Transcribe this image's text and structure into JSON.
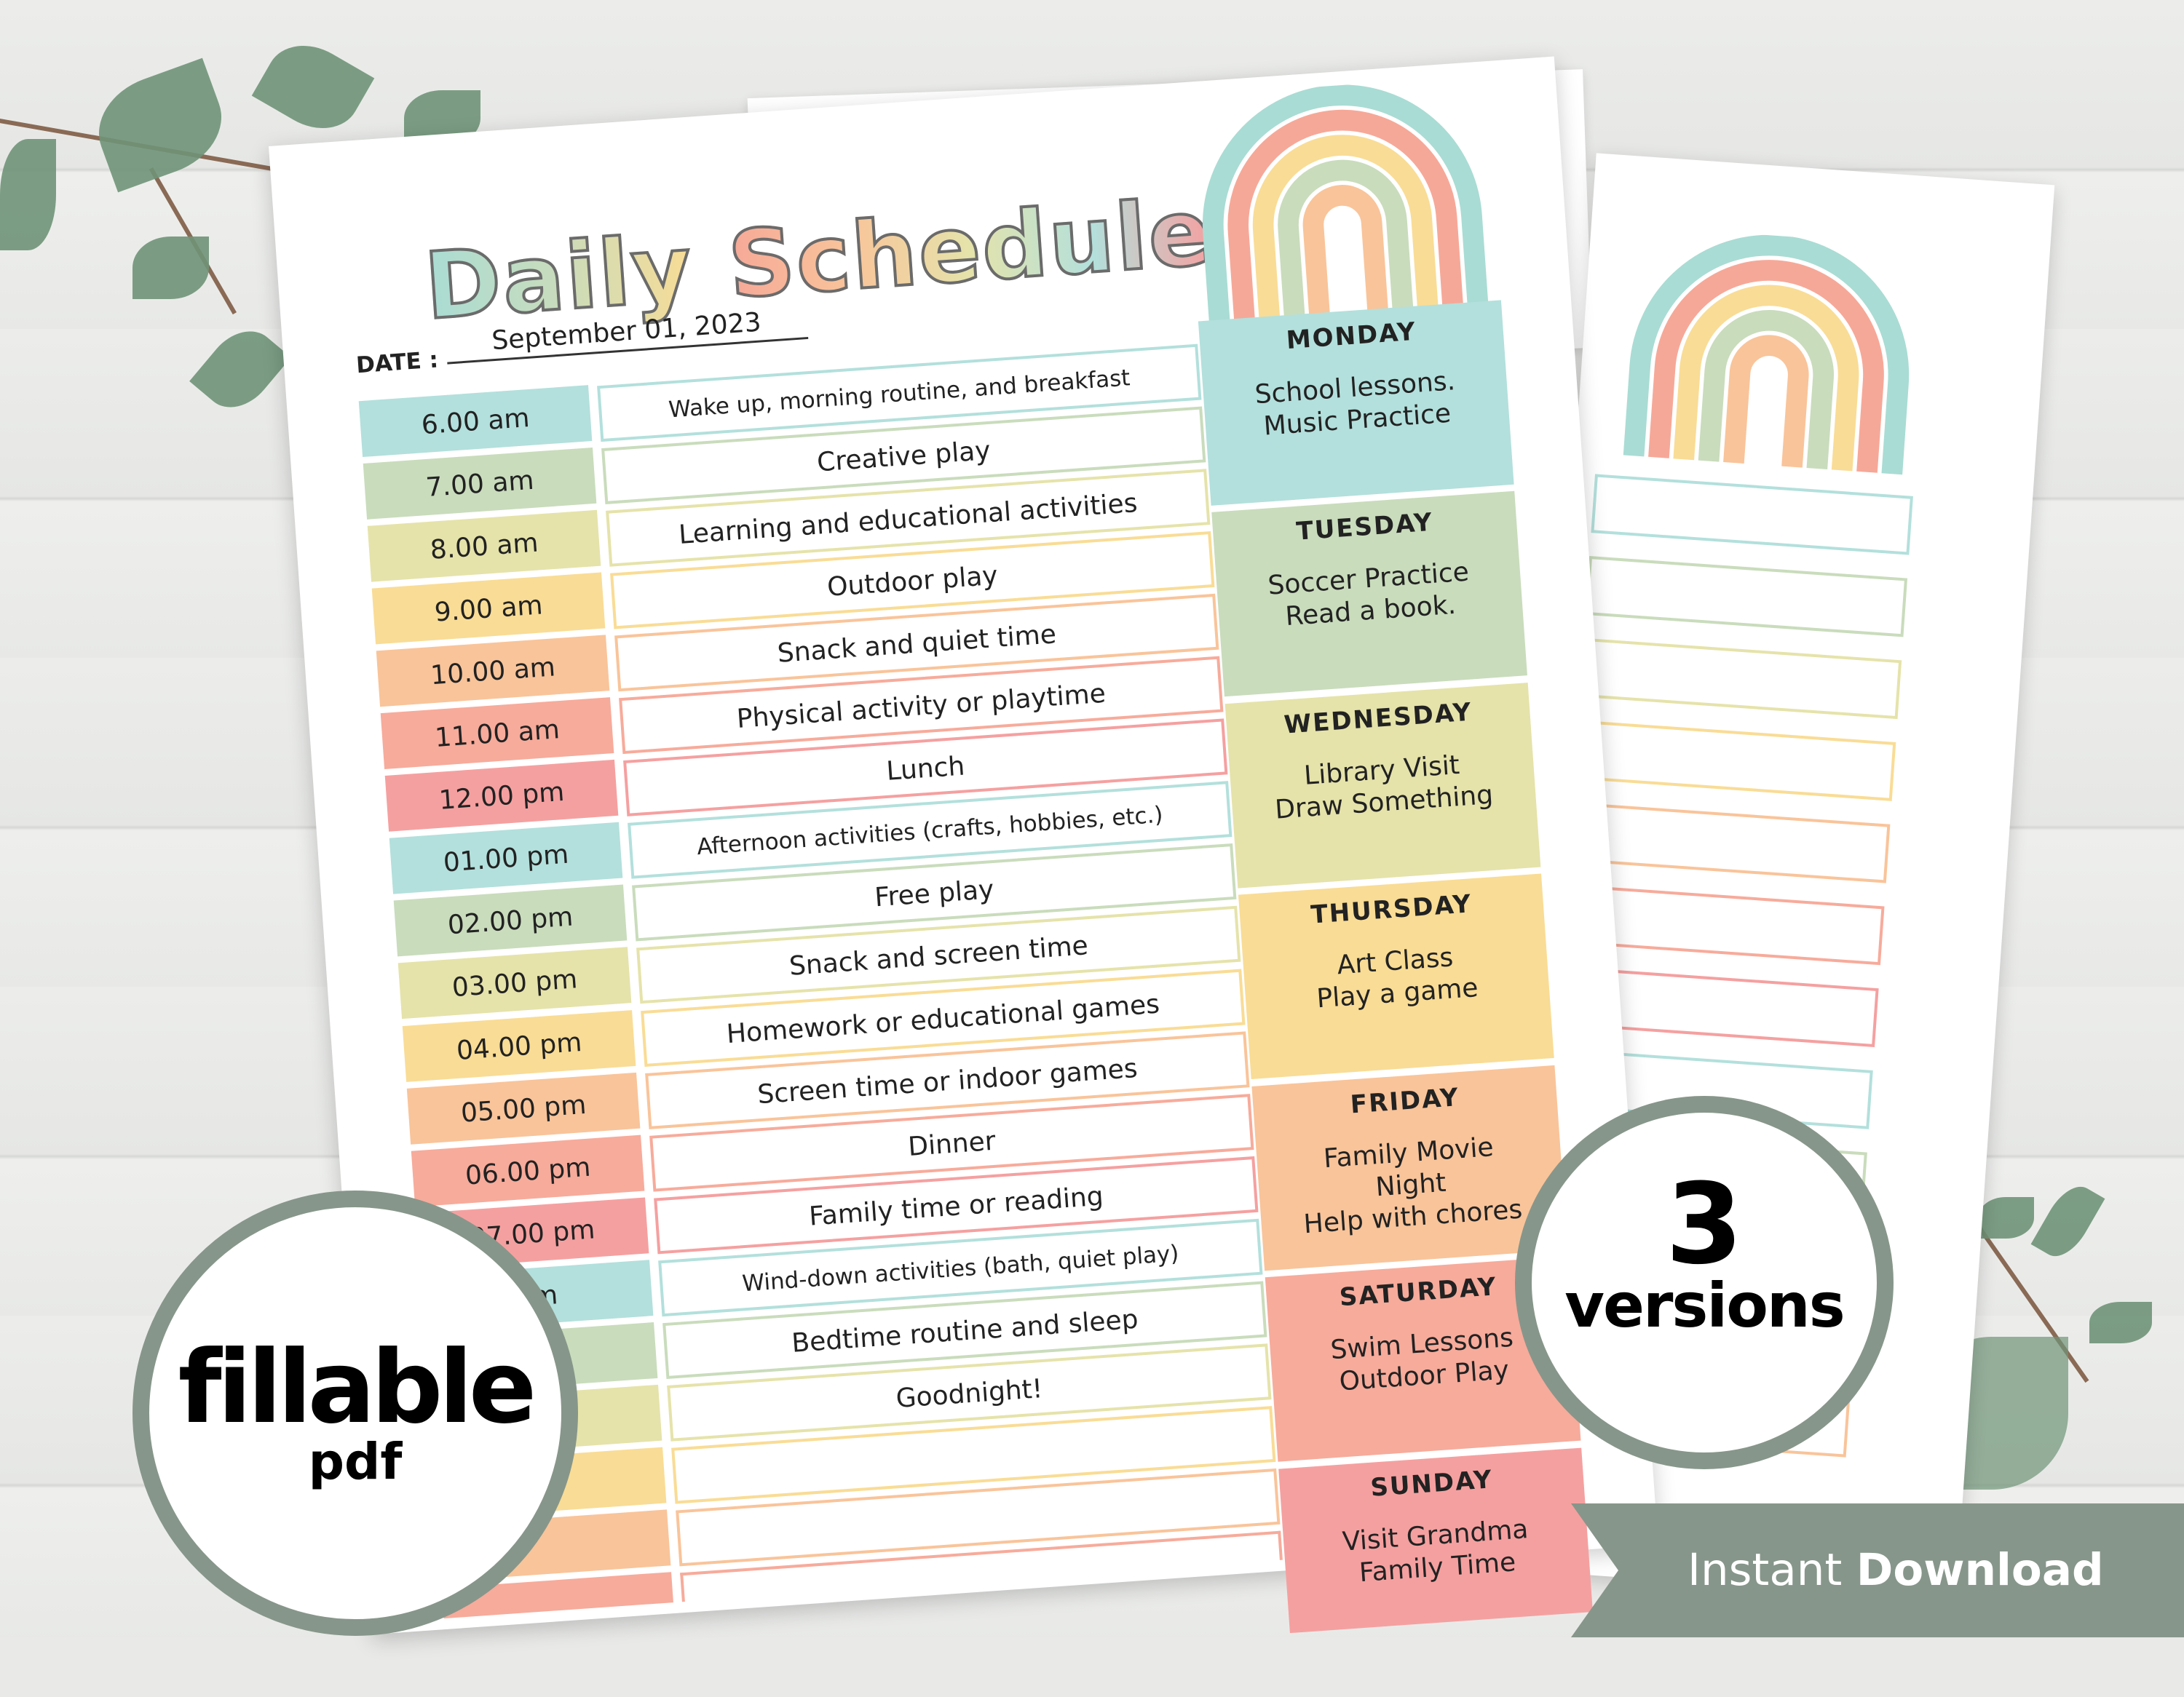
{
  "document": {
    "title_word1": "Daily",
    "title_word2": "Schedule",
    "date_label": "DATE :",
    "date_value": "September 01, 2023",
    "rows": [
      {
        "time": "6.00 am",
        "activity": "Wake up, morning routine, and breakfast"
      },
      {
        "time": "7.00 am",
        "activity": "Creative play"
      },
      {
        "time": "8.00 am",
        "activity": "Learning and educational activities"
      },
      {
        "time": "9.00 am",
        "activity": "Outdoor play"
      },
      {
        "time": "10.00 am",
        "activity": "Snack and quiet time"
      },
      {
        "time": "11.00 am",
        "activity": "Physical activity or playtime"
      },
      {
        "time": "12.00 pm",
        "activity": "Lunch"
      },
      {
        "time": "01.00 pm",
        "activity": "Afternoon activities (crafts, hobbies, etc.)"
      },
      {
        "time": "02.00 pm",
        "activity": "Free play"
      },
      {
        "time": "03.00 pm",
        "activity": "Snack and screen time"
      },
      {
        "time": "04.00 pm",
        "activity": "Homework or educational games"
      },
      {
        "time": "05.00 pm",
        "activity": "Screen time or indoor games"
      },
      {
        "time": "06.00 pm",
        "activity": "Dinner"
      },
      {
        "time": "07.00 pm",
        "activity": "Family time or reading"
      },
      {
        "time": "pm",
        "activity": "Wind-down activities (bath, quiet play)"
      },
      {
        "time": "pm",
        "activity": "Bedtime routine and sleep"
      },
      {
        "time": "pm",
        "activity": "Goodnight!"
      },
      {
        "time": "",
        "activity": ""
      },
      {
        "time": "",
        "activity": ""
      },
      {
        "time": "",
        "activity": ""
      }
    ],
    "days": [
      {
        "name": "MONDAY",
        "text": "School lessons.\nMusic Practice"
      },
      {
        "name": "TUESDAY",
        "text": "Soccer Practice\nRead a book."
      },
      {
        "name": "WEDNESDAY",
        "text": "Library Visit\nDraw Something"
      },
      {
        "name": "THURSDAY",
        "text": "Art Class\nPlay a game"
      },
      {
        "name": "FRIDAY",
        "text": "Family Movie\nNight\nHelp with chores"
      },
      {
        "name": "SATURDAY",
        "text": "Swim Lessons\nOutdoor Play"
      },
      {
        "name": "SUNDAY",
        "text": "Visit Grandma\nFamily Time"
      }
    ],
    "palette": [
      "#b3e0dc",
      "#c9dcbc",
      "#e5e3aa",
      "#f9dc95",
      "#f9c49a",
      "#f7ab9b",
      "#f5a0a0"
    ]
  },
  "badges": {
    "fillable_big": "fillable",
    "fillable_small": "pdf",
    "versions_big": "3",
    "versions_small": "versions"
  },
  "banner": {
    "light": "Instant",
    "bold": "Download",
    "color": "#87968a"
  }
}
